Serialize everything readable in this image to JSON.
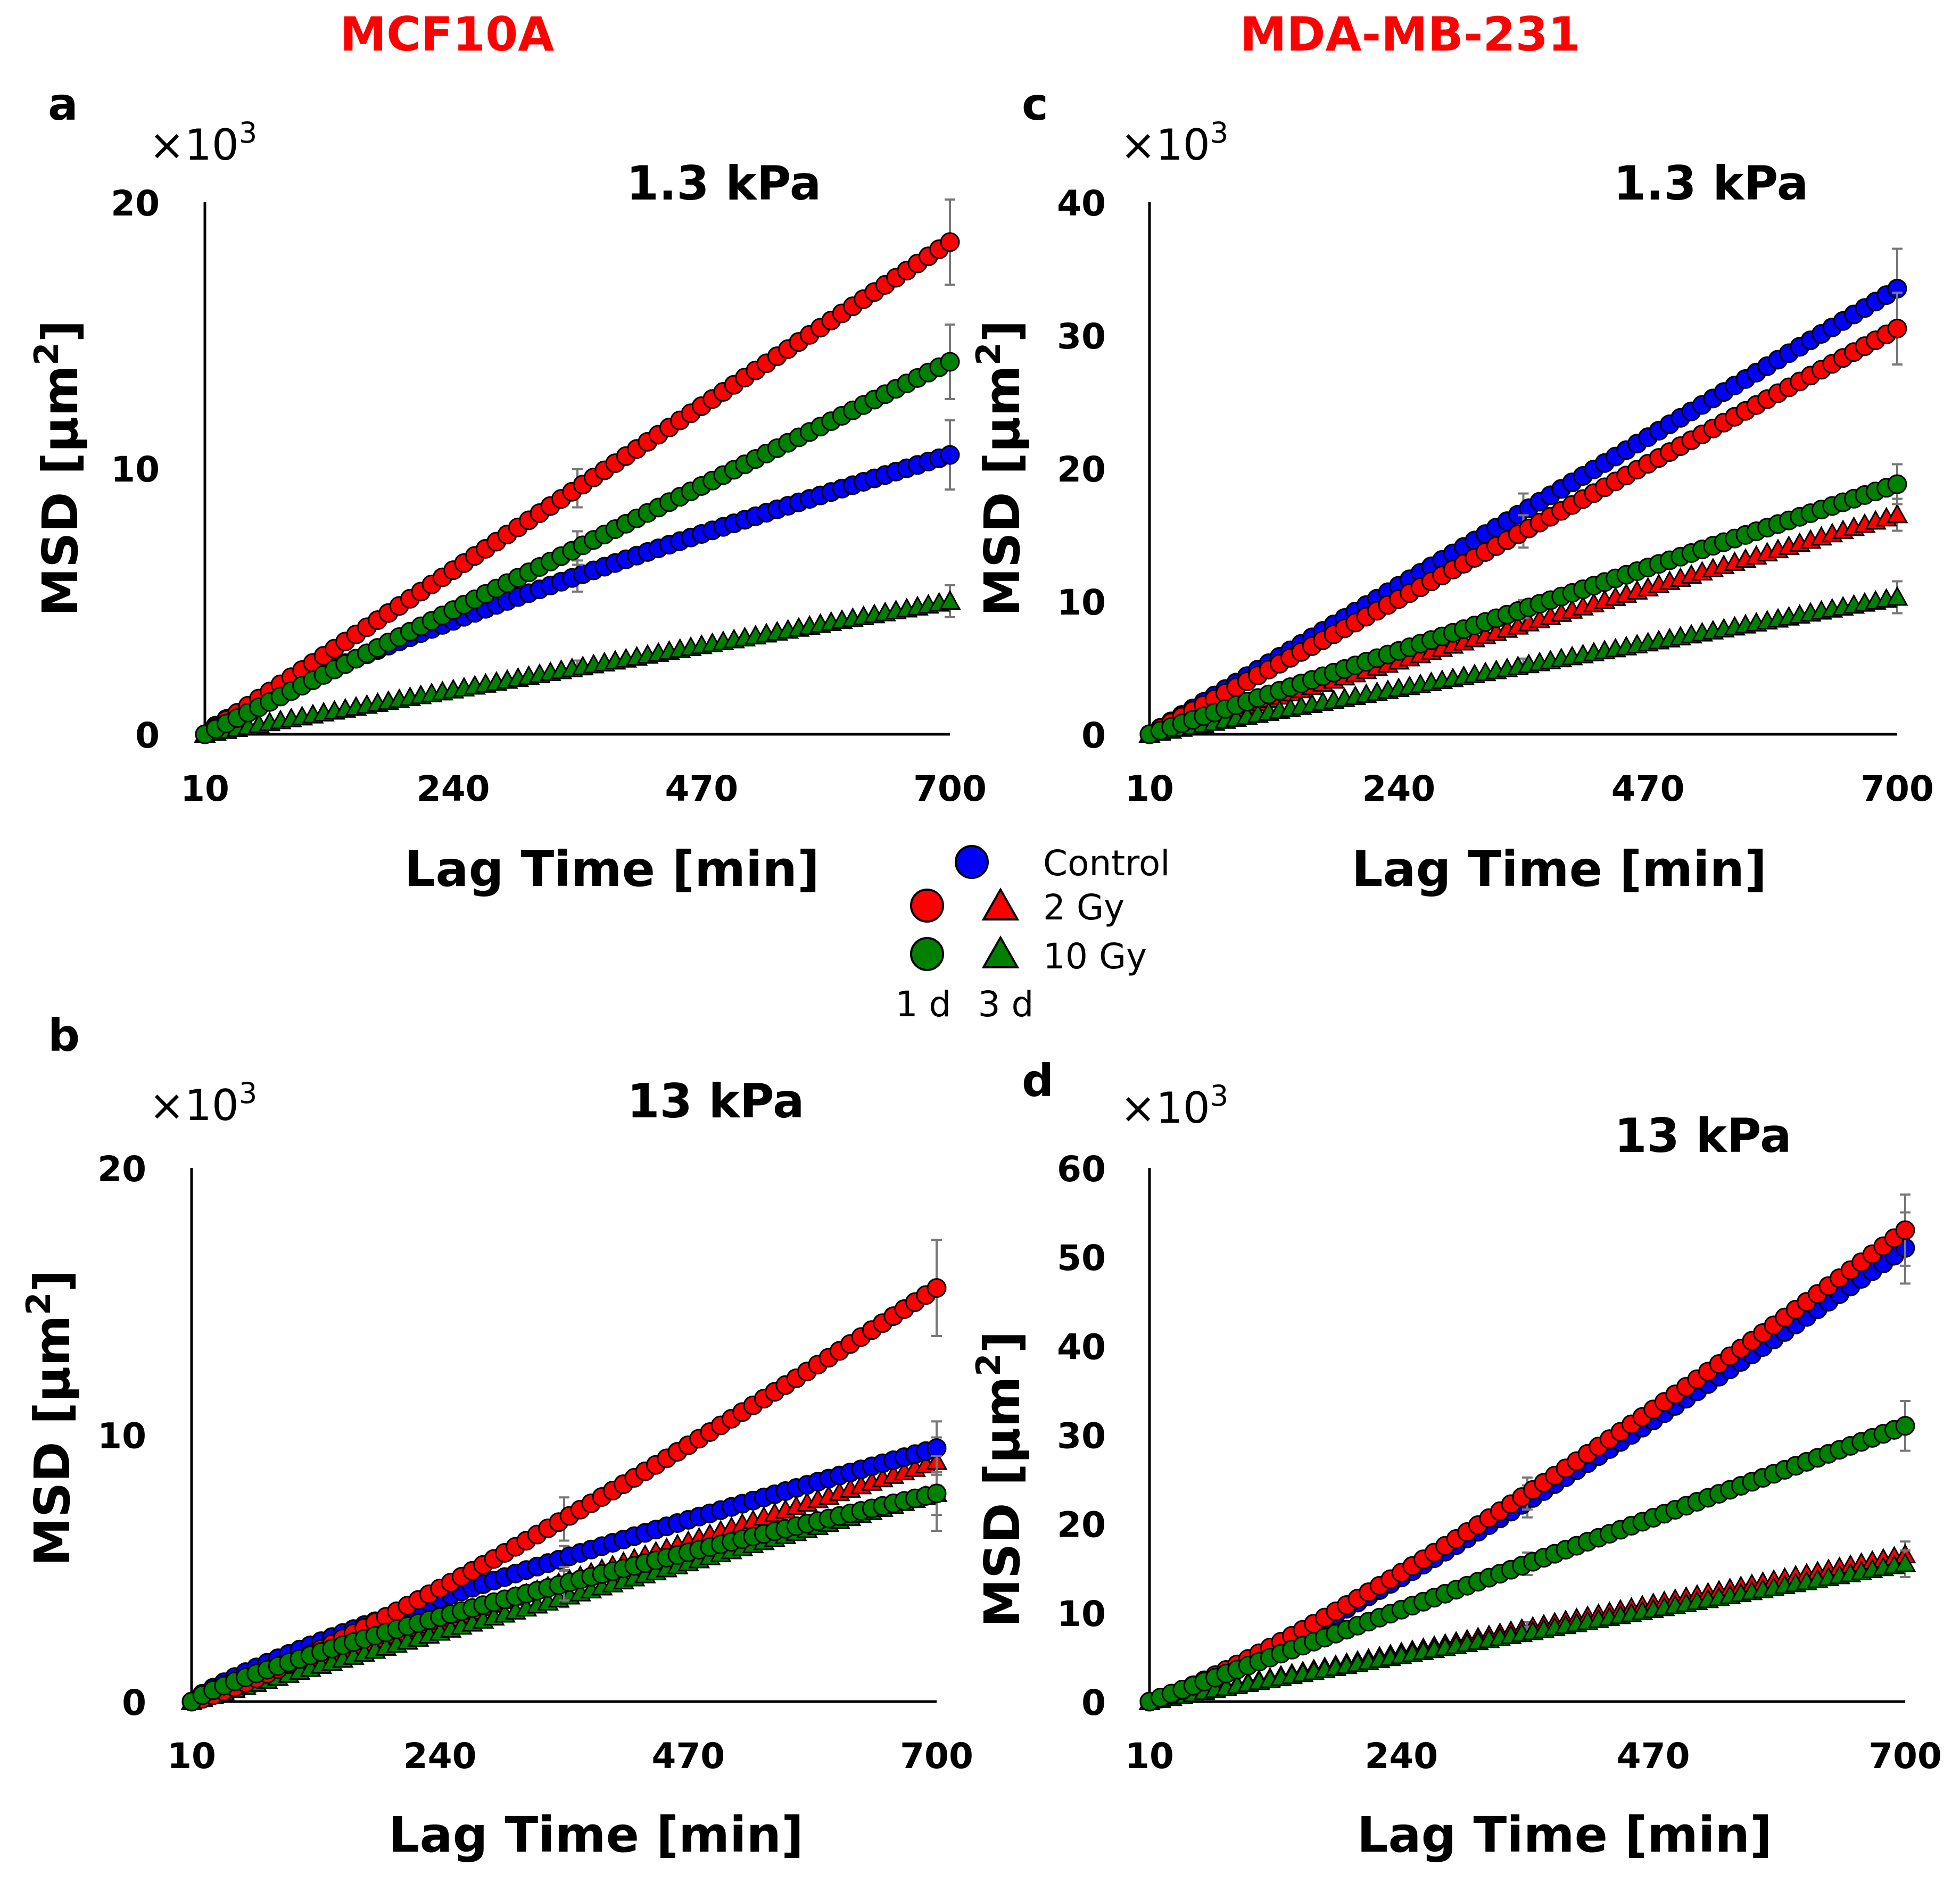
{
  "figure": {
    "column_titles": [
      "MCF10A",
      "MDA-MB-231"
    ],
    "legend": {
      "entries": [
        {
          "label": "Control",
          "color": "#0000ff"
        },
        {
          "label": "2 Gy",
          "color": "#ff0000"
        },
        {
          "label": "10 Gy",
          "color": "#008000"
        }
      ],
      "time_labels": [
        "1 d",
        "3 d"
      ],
      "marker_meaning": {
        "circle": "1 d",
        "triangle": "3 d"
      }
    }
  },
  "chart_data": [
    {
      "id": "a",
      "type": "scatter",
      "panel_label": "a",
      "column": "MCF10A",
      "title": "1.3 kPa",
      "multiplier": "×10",
      "multiplier_exp": "3",
      "xlabel": "Lag Time [min]",
      "ylabel": "MSD [µm",
      "ylabel_exp": "2",
      "ylabel_end": "]",
      "x_ticks": [
        10,
        240,
        470,
        700
      ],
      "y_ticks": [
        0,
        10,
        20
      ],
      "xlim": [
        10,
        700
      ],
      "ylim": [
        0,
        20
      ],
      "x_range": [
        10,
        700
      ],
      "points_per_series": 70,
      "series": [
        {
          "name": "Control 1 d",
          "color": "#0000ff",
          "marker": "circle",
          "y_end": 10.5,
          "shape": "concave",
          "err_end": 1.3
        },
        {
          "name": "2 Gy 1 d",
          "color": "#ff0000",
          "marker": "circle",
          "y_end": 18.5,
          "shape": "linear",
          "err_end": 1.6
        },
        {
          "name": "10 Gy 1 d",
          "color": "#008000",
          "marker": "circle",
          "y_end": 14.0,
          "shape": "linear",
          "err_end": 1.4
        },
        {
          "name": "2 Gy 3 d",
          "color": "#ff0000",
          "marker": "triangle",
          "y_end": 5.0,
          "shape": "linear",
          "err_end": 0.6
        },
        {
          "name": "10 Gy 3 d",
          "color": "#008000",
          "marker": "triangle",
          "y_end": 5.0,
          "shape": "linear",
          "err_end": 0.6
        }
      ]
    },
    {
      "id": "b",
      "type": "scatter",
      "panel_label": "b",
      "column": "MCF10A",
      "title": "13 kPa",
      "multiplier": "×10",
      "multiplier_exp": "3",
      "xlabel": "Lag Time [min]",
      "ylabel": "MSD [µm",
      "ylabel_exp": "2",
      "ylabel_end": "]",
      "x_ticks": [
        10,
        240,
        470,
        700
      ],
      "y_ticks": [
        0,
        10,
        20
      ],
      "xlim": [
        10,
        700
      ],
      "ylim": [
        0,
        20
      ],
      "x_range": [
        10,
        700
      ],
      "points_per_series": 70,
      "series": [
        {
          "name": "Control 1 d",
          "color": "#0000ff",
          "marker": "circle",
          "y_end": 9.5,
          "shape": "concave",
          "err_end": 1.0
        },
        {
          "name": "2 Gy 1 d",
          "color": "#ff0000",
          "marker": "circle",
          "y_end": 15.5,
          "shape": "convex",
          "err_end": 1.8
        },
        {
          "name": "10 Gy 1 d",
          "color": "#008000",
          "marker": "circle",
          "y_end": 7.8,
          "shape": "concave",
          "err_end": 1.4
        },
        {
          "name": "2 Gy 3 d",
          "color": "#ff0000",
          "marker": "triangle",
          "y_end": 9.0,
          "shape": "linear",
          "err_end": 0.9
        },
        {
          "name": "10 Gy 3 d",
          "color": "#008000",
          "marker": "triangle",
          "y_end": 7.8,
          "shape": "linear",
          "err_end": 0.8
        }
      ]
    },
    {
      "id": "c",
      "type": "scatter",
      "panel_label": "c",
      "column": "MDA-MB-231",
      "title": "1.3 kPa",
      "multiplier": "×10",
      "multiplier_exp": "3",
      "xlabel": "Lag Time [min]",
      "ylabel": "MSD [µm",
      "ylabel_exp": "2",
      "ylabel_end": "]",
      "x_ticks": [
        10,
        240,
        470,
        700
      ],
      "y_ticks": [
        0,
        10,
        20,
        30,
        40
      ],
      "xlim": [
        10,
        700
      ],
      "ylim": [
        0,
        40
      ],
      "x_range": [
        10,
        700
      ],
      "points_per_series": 70,
      "series": [
        {
          "name": "Control 1 d",
          "color": "#0000ff",
          "marker": "circle",
          "y_end": 33.5,
          "shape": "linear",
          "err_end": 3.0
        },
        {
          "name": "2 Gy 1 d",
          "color": "#ff0000",
          "marker": "circle",
          "y_end": 30.5,
          "shape": "linear",
          "err_end": 2.7
        },
        {
          "name": "10 Gy 1 d",
          "color": "#008000",
          "marker": "circle",
          "y_end": 18.8,
          "shape": "linear",
          "err_end": 1.5
        },
        {
          "name": "2 Gy 3 d",
          "color": "#ff0000",
          "marker": "triangle",
          "y_end": 16.5,
          "shape": "linear",
          "err_end": 1.2
        },
        {
          "name": "10 Gy 3 d",
          "color": "#008000",
          "marker": "triangle",
          "y_end": 10.3,
          "shape": "linear",
          "err_end": 1.2
        }
      ]
    },
    {
      "id": "d",
      "type": "scatter",
      "panel_label": "d",
      "column": "MDA-MB-231",
      "title": "13 kPa",
      "multiplier": "×10",
      "multiplier_exp": "3",
      "xlabel": "Lag Time [min]",
      "ylabel": "MSD [µm",
      "ylabel_exp": "2",
      "ylabel_end": "]",
      "x_ticks": [
        10,
        240,
        470,
        700
      ],
      "y_ticks": [
        0,
        10,
        20,
        30,
        40,
        50,
        60
      ],
      "xlim": [
        10,
        700
      ],
      "ylim": [
        0,
        60
      ],
      "x_range": [
        10,
        700
      ],
      "points_per_series": 70,
      "series": [
        {
          "name": "Control 1 d",
          "color": "#0000ff",
          "marker": "circle",
          "y_end": 51.0,
          "shape": "convex",
          "err_end": 4.0
        },
        {
          "name": "2 Gy 1 d",
          "color": "#ff0000",
          "marker": "circle",
          "y_end": 53.0,
          "shape": "convex",
          "err_end": 4.0
        },
        {
          "name": "10 Gy 1 d",
          "color": "#008000",
          "marker": "circle",
          "y_end": 31.0,
          "shape": "linear",
          "err_end": 2.8
        },
        {
          "name": "2 Gy 3 d",
          "color": "#ff0000",
          "marker": "triangle",
          "y_end": 16.5,
          "shape": "linear",
          "err_end": 1.5
        },
        {
          "name": "10 Gy 3 d",
          "color": "#008000",
          "marker": "triangle",
          "y_end": 15.5,
          "shape": "linear",
          "err_end": 1.5
        }
      ]
    }
  ]
}
